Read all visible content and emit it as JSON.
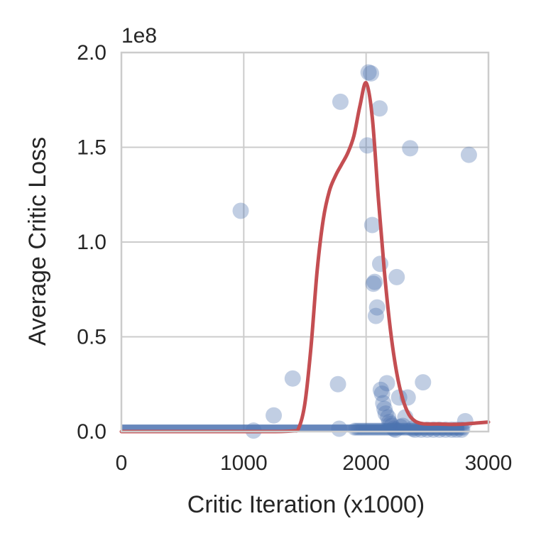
{
  "chart_data": {
    "type": "scatter",
    "xlabel": "Critic Iteration (x1000)",
    "ylabel": "Average Critic Loss",
    "offset_label": "1e8",
    "xlim": [
      0,
      3000
    ],
    "ylim": [
      0,
      2.0
    ],
    "x_ticks": [
      0,
      1000,
      2000,
      3000
    ],
    "x_tick_labels": [
      "0",
      "1000",
      "2000",
      "3000"
    ],
    "y_ticks": [
      0.0,
      0.5,
      1.0,
      1.5,
      2.0
    ],
    "y_tick_labels": [
      "0.0",
      "0.5",
      "1.0",
      "1.5",
      "2.0"
    ],
    "grid": true,
    "colors": {
      "points": "#4c72b0",
      "curve": "#c44e52",
      "grid": "#cccccc",
      "text": "#262626"
    },
    "series": [
      {
        "type": "scatter",
        "points": [
          [
            975,
            1.165
          ],
          [
            1080,
            0.005
          ],
          [
            1245,
            0.085
          ],
          [
            1400,
            0.28
          ],
          [
            1770,
            0.25
          ],
          [
            1780,
            0.015
          ],
          [
            1790,
            1.74
          ],
          [
            2010,
            1.51
          ],
          [
            2020,
            1.895
          ],
          [
            2040,
            1.89
          ],
          [
            2050,
            1.09
          ],
          [
            2060,
            0.78
          ],
          [
            2070,
            0.79
          ],
          [
            2080,
            0.61
          ],
          [
            2090,
            0.655
          ],
          [
            2110,
            1.705
          ],
          [
            2115,
            0.885
          ],
          [
            2120,
            0.22
          ],
          [
            2130,
            0.2
          ],
          [
            2140,
            0.15
          ],
          [
            2150,
            0.12
          ],
          [
            2160,
            0.095
          ],
          [
            2170,
            0.255
          ],
          [
            2180,
            0.075
          ],
          [
            2190,
            0.05
          ],
          [
            2200,
            0.04
          ],
          [
            2210,
            0.03
          ],
          [
            2225,
            0.015
          ],
          [
            2240,
            0.01
          ],
          [
            2250,
            0.815
          ],
          [
            2270,
            0.18
          ],
          [
            2280,
            0.025
          ],
          [
            2300,
            0.03
          ],
          [
            2320,
            0.075
          ],
          [
            2340,
            0.18
          ],
          [
            2360,
            1.495
          ],
          [
            2380,
            0.015
          ],
          [
            2400,
            0.01
          ],
          [
            2450,
            0.01
          ],
          [
            2465,
            0.26
          ],
          [
            2500,
            0.01
          ],
          [
            2550,
            0.01
          ],
          [
            2600,
            0.01
          ],
          [
            2650,
            0.01
          ],
          [
            2700,
            0.01
          ],
          [
            2740,
            0.01
          ],
          [
            2780,
            0.01
          ],
          [
            2810,
            0.055
          ],
          [
            2840,
            1.46
          ]
        ],
        "dense_band": {
          "x_start": 0,
          "x_end": 2800,
          "y": 0.005
        }
      },
      {
        "type": "line",
        "points": [
          [
            0,
            0.0
          ],
          [
            300,
            0.0
          ],
          [
            600,
            0.0
          ],
          [
            900,
            0.0
          ],
          [
            1200,
            0.0
          ],
          [
            1400,
            0.003
          ],
          [
            1450,
            0.02
          ],
          [
            1500,
            0.15
          ],
          [
            1550,
            0.45
          ],
          [
            1600,
            0.85
          ],
          [
            1650,
            1.12
          ],
          [
            1700,
            1.27
          ],
          [
            1750,
            1.35
          ],
          [
            1800,
            1.41
          ],
          [
            1850,
            1.47
          ],
          [
            1900,
            1.56
          ],
          [
            1950,
            1.72
          ],
          [
            2000,
            1.84
          ],
          [
            2050,
            1.66
          ],
          [
            2100,
            1.23
          ],
          [
            2150,
            0.84
          ],
          [
            2200,
            0.53
          ],
          [
            2250,
            0.31
          ],
          [
            2300,
            0.17
          ],
          [
            2350,
            0.09
          ],
          [
            2400,
            0.055
          ],
          [
            2450,
            0.043
          ],
          [
            2500,
            0.04
          ],
          [
            2600,
            0.04
          ],
          [
            2700,
            0.038
          ],
          [
            2800,
            0.04
          ],
          [
            2900,
            0.045
          ],
          [
            3000,
            0.05
          ]
        ]
      }
    ]
  }
}
